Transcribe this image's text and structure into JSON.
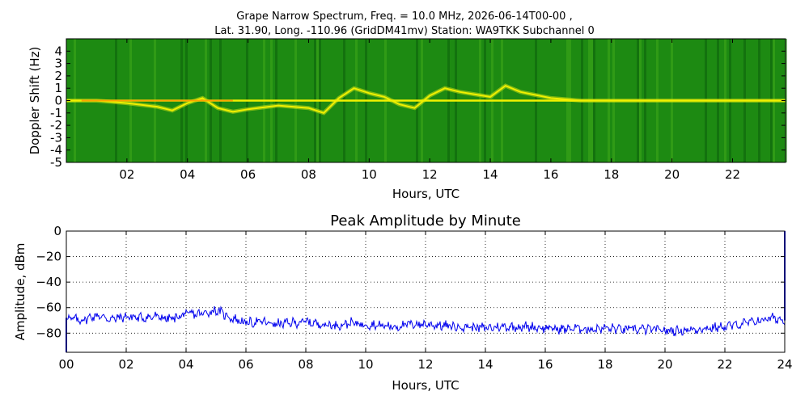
{
  "figure": {
    "title_line1": "Grape Narrow Spectrum, Freq. = 10.0 MHz, 2026-06-14T00-00 ,",
    "title_line2": "Lat.  31.90, Long. -110.96 (GridDM41mv) Station: WA9TKK Subchannel 0"
  },
  "chart_data": [
    {
      "type": "heatmap",
      "title": "",
      "xlabel": "Hours, UTC",
      "ylabel": "Doppler Shift (Hz)",
      "xlim": [
        0,
        23.75
      ],
      "ylim": [
        -5,
        5
      ],
      "xticks": [
        2,
        4,
        6,
        8,
        10,
        12,
        14,
        16,
        18,
        20,
        22
      ],
      "xtick_labels": [
        "02",
        "04",
        "06",
        "08",
        "10",
        "12",
        "14",
        "16",
        "18",
        "20",
        "22"
      ],
      "yticks": [
        4,
        3,
        2,
        1,
        0,
        -1,
        -2,
        -3,
        -4,
        -5
      ],
      "ytick_labels": [
        "4",
        "3",
        "2",
        "1",
        "0",
        "-1",
        "-2",
        "-3",
        "-4",
        "-5"
      ],
      "colormap": [
        "#0b5e0b",
        "#1e8a12",
        "#3faa1a",
        "#c8dc10",
        "#f0f000",
        "#ff9900"
      ],
      "trace": {
        "hours": [
          0,
          1,
          2,
          3,
          3.5,
          4,
          4.5,
          5,
          5.5,
          6,
          7,
          8,
          8.5,
          9,
          9.5,
          10,
          10.5,
          11,
          11.5,
          12,
          12.5,
          13,
          14,
          14.5,
          15,
          16,
          17,
          18,
          19,
          20,
          21,
          22,
          23,
          23.75
        ],
        "doppler_hz": [
          0,
          0,
          -0.2,
          -0.5,
          -0.8,
          -0.2,
          0.2,
          -0.6,
          -0.9,
          -0.7,
          -0.4,
          -0.6,
          -1.0,
          0.2,
          1.0,
          0.6,
          0.3,
          -0.3,
          -0.6,
          0.4,
          1.0,
          0.7,
          0.3,
          1.2,
          0.7,
          0.2,
          0,
          0,
          0,
          0,
          0,
          0,
          0,
          0
        ]
      }
    },
    {
      "type": "line",
      "title": "Peak Amplitude by Minute",
      "xlabel": "Hours, UTC",
      "ylabel": "Amplitude, dBm",
      "xlim": [
        0,
        24
      ],
      "ylim": [
        -95,
        0
      ],
      "grid": true,
      "xticks": [
        0,
        2,
        4,
        6,
        8,
        10,
        12,
        14,
        16,
        18,
        20,
        22,
        24
      ],
      "xtick_labels": [
        "00",
        "02",
        "04",
        "06",
        "08",
        "10",
        "12",
        "14",
        "16",
        "18",
        "20",
        "22",
        "24"
      ],
      "yticks": [
        0,
        -20,
        -40,
        -60,
        -80
      ],
      "ytick_labels": [
        "0",
        "−20",
        "−40",
        "−60",
        "−80"
      ],
      "color": "#0000ee",
      "series": [
        {
          "x": [
            0,
            0.5,
            1,
            1.5,
            2,
            2.5,
            3,
            3.5,
            4,
            4.5,
            5,
            5.5,
            6,
            6.5,
            7,
            7.5,
            8,
            8.5,
            9,
            9.5,
            10,
            10.5,
            11,
            11.5,
            12,
            12.5,
            13,
            13.5,
            14,
            14.5,
            15,
            15.5,
            16,
            16.5,
            17,
            17.5,
            18,
            18.5,
            19,
            19.5,
            20,
            20.5,
            21,
            21.5,
            22,
            22.5,
            23,
            23.5,
            24
          ],
          "values": [
            -68,
            -70,
            -66,
            -69,
            -67,
            -68,
            -67,
            -69,
            -65,
            -65,
            -62,
            -68,
            -72,
            -71,
            -73,
            -72,
            -71,
            -73,
            -74,
            -72,
            -73,
            -74,
            -75,
            -73,
            -73,
            -74,
            -75,
            -75,
            -76,
            -75,
            -75,
            -75,
            -76,
            -77,
            -76,
            -77,
            -76,
            -77,
            -77,
            -77,
            -78,
            -78,
            -77,
            -76,
            -75,
            -73,
            -71,
            -68,
            -70
          ]
        }
      ]
    }
  ]
}
